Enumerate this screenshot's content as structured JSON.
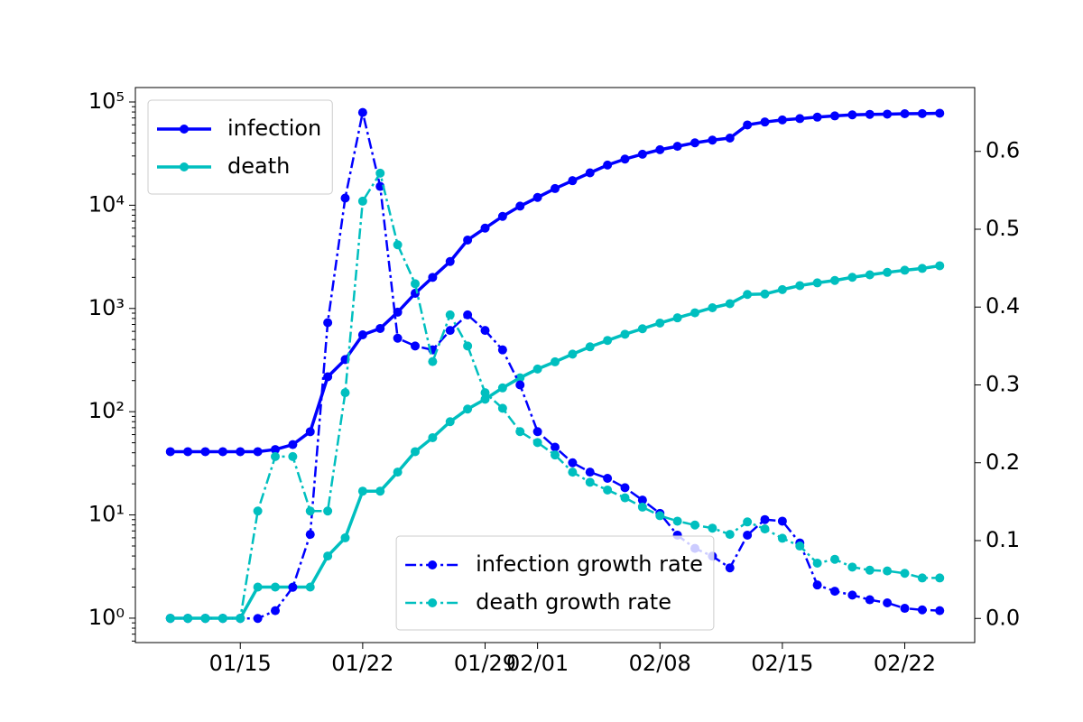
{
  "chart_data": {
    "type": "line",
    "x": [
      "01/11",
      "01/12",
      "01/13",
      "01/14",
      "01/15",
      "01/16",
      "01/17",
      "01/18",
      "01/19",
      "01/20",
      "01/21",
      "01/22",
      "01/23",
      "01/24",
      "01/25",
      "01/26",
      "01/27",
      "01/28",
      "01/29",
      "01/30",
      "01/31",
      "02/01",
      "02/02",
      "02/03",
      "02/04",
      "02/05",
      "02/06",
      "02/07",
      "02/08",
      "02/09",
      "02/10",
      "02/11",
      "02/12",
      "02/13",
      "02/14",
      "02/15",
      "02/16",
      "02/17",
      "02/18",
      "02/19",
      "02/20",
      "02/21",
      "02/22",
      "02/23",
      "02/24"
    ],
    "series": [
      {
        "name": "infection",
        "color": "#0000ff",
        "linestyle": "solid",
        "axis": "y",
        "values": [
          41,
          41,
          41,
          41,
          41,
          41,
          43,
          48,
          64,
          218,
          320,
          555,
          640,
          920,
          1400,
          2000,
          2850,
          4600,
          6000,
          7800,
          9800,
          11900,
          14500,
          17300,
          20600,
          24500,
          28000,
          31200,
          34500,
          37200,
          40200,
          42700,
          44700,
          59900,
          64000,
          67000,
          69000,
          71300,
          73300,
          75100,
          75900,
          76300,
          77000,
          77200,
          77800
        ]
      },
      {
        "name": "death",
        "color": "#00bfbf",
        "linestyle": "solid",
        "axis": "y",
        "values": [
          1,
          1,
          1,
          1,
          1,
          2,
          2,
          2,
          2,
          4,
          6,
          17,
          17,
          26,
          41,
          56,
          80,
          106,
          132,
          170,
          213,
          259,
          304,
          361,
          425,
          490,
          563,
          636,
          722,
          811,
          908,
          1016,
          1113,
          1367,
          1380,
          1523,
          1665,
          1770,
          1868,
          2004,
          2118,
          2236,
          2345,
          2442,
          2592
        ]
      },
      {
        "name": "infection growth rate",
        "color": "#0000ff",
        "linestyle": "dashdot",
        "axis": "y2",
        "values": [
          0,
          0,
          0,
          0,
          0,
          0,
          0.01,
          0.04,
          0.108,
          0.38,
          0.54,
          0.65,
          0.555,
          0.36,
          0.35,
          0.345,
          0.37,
          0.39,
          0.37,
          0.345,
          0.3,
          0.24,
          0.22,
          0.2,
          0.188,
          0.18,
          0.168,
          0.152,
          0.135,
          0.107,
          0.09,
          0.08,
          0.065,
          0.107,
          0.127,
          0.125,
          0.097,
          0.043,
          0.035,
          0.03,
          0.024,
          0.02,
          0.013,
          0.011,
          0.01
        ]
      },
      {
        "name": "death growth rate",
        "color": "#00bfbf",
        "linestyle": "dashdot",
        "axis": "y2",
        "values": [
          0,
          0,
          0,
          0,
          0,
          0.138,
          0.208,
          0.208,
          0.138,
          0.138,
          0.29,
          0.536,
          0.572,
          0.48,
          0.43,
          0.33,
          0.39,
          0.35,
          0.29,
          0.27,
          0.24,
          0.226,
          0.21,
          0.188,
          0.175,
          0.165,
          0.155,
          0.143,
          0.132,
          0.125,
          0.12,
          0.116,
          0.108,
          0.124,
          0.115,
          0.103,
          0.093,
          0.071,
          0.076,
          0.066,
          0.062,
          0.061,
          0.058,
          0.052,
          0.052
        ]
      }
    ],
    "xlim": [
      "01/09",
      "02/26"
    ],
    "xticks": [
      "01/15",
      "01/22",
      "01/29",
      "02/01",
      "02/08",
      "02/15",
      "02/22"
    ],
    "ylog": true,
    "ylim": [
      0.58,
      138000
    ],
    "yticks": [
      {
        "value": 1,
        "label": "10⁰"
      },
      {
        "value": 10,
        "label": "10¹"
      },
      {
        "value": 100,
        "label": "10²"
      },
      {
        "value": 1000,
        "label": "10³"
      },
      {
        "value": 10000,
        "label": "10⁴"
      },
      {
        "value": 100000,
        "label": "10⁵"
      }
    ],
    "y2lim": [
      -0.031,
      0.682
    ],
    "y2ticks": [
      {
        "value": 0,
        "label": "0.0"
      },
      0.1,
      0.2,
      0.3,
      0.4,
      0.5,
      0.6
    ],
    "legend_y": "upper left",
    "legend_y2": "lower center"
  }
}
